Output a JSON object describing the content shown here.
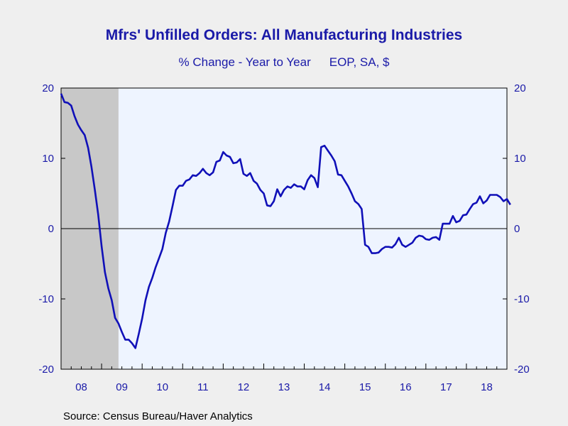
{
  "chart_data": {
    "type": "line",
    "title": "Mfrs' Unfilled Orders: All Manufacturing Industries",
    "subtitle": "% Change - Year to Year",
    "units": "EOP, SA, $",
    "source": "Source:  Census Bureau/Haver Analytics",
    "ylim": [
      -20,
      20
    ],
    "xlim": [
      2008.0,
      2019.0
    ],
    "yticks": [
      20,
      10,
      0,
      -10,
      -20
    ],
    "xtick_labels": [
      "08",
      "09",
      "10",
      "11",
      "12",
      "13",
      "14",
      "15",
      "16",
      "17",
      "18"
    ],
    "recession": [
      2008.0,
      2009.417
    ],
    "grid": false,
    "zero_line": true,
    "colors": {
      "line": "#1010b8",
      "plot_bg": "#eef4ff",
      "recession": "#c8c8c8",
      "text": "#1a1aa8"
    },
    "series": [
      {
        "values": [
          19.2,
          18.0,
          17.9,
          17.5,
          16.0,
          14.8,
          14.0,
          13.3,
          11.5,
          8.8,
          5.5,
          2.0,
          -2.5,
          -6.2,
          -8.5,
          -10.2,
          -12.7,
          -13.5,
          -14.7,
          -15.8,
          -15.8,
          -16.3,
          -17.0,
          -15.0,
          -12.8,
          -10.2,
          -8.3,
          -7.0,
          -5.5,
          -4.2,
          -2.9,
          -0.6,
          1.0,
          3.2,
          5.5,
          6.1,
          6.1,
          6.8,
          7.0,
          7.6,
          7.5,
          7.9,
          8.5,
          7.9,
          7.6,
          8.0,
          9.5,
          9.7,
          10.9,
          10.4,
          10.2,
          9.3,
          9.4,
          9.9,
          7.8,
          7.5,
          7.9,
          6.8,
          6.4,
          5.5,
          5.0,
          3.3,
          3.2,
          3.9,
          5.6,
          4.6,
          5.5,
          6.0,
          5.8,
          6.3,
          6.0,
          6.0,
          5.6,
          6.9,
          7.6,
          7.2,
          5.9,
          11.6,
          11.8,
          11.1,
          10.4,
          9.6,
          7.7,
          7.6,
          6.8,
          6.0,
          5.0,
          3.9,
          3.5,
          2.8,
          -2.3,
          -2.6,
          -3.5,
          -3.5,
          -3.4,
          -2.9,
          -2.6,
          -2.6,
          -2.7,
          -2.2,
          -1.3,
          -2.3,
          -2.6,
          -2.3,
          -2.0,
          -1.3,
          -1.0,
          -1.1,
          -1.5,
          -1.6,
          -1.3,
          -1.2,
          -1.6,
          0.7,
          0.7,
          0.7,
          1.8,
          0.9,
          1.1,
          1.9,
          2.0,
          2.8,
          3.5,
          3.7,
          4.6,
          3.6,
          4.0,
          4.8,
          4.8,
          4.8,
          4.5,
          3.9,
          4.2,
          3.4
        ]
      }
    ]
  }
}
